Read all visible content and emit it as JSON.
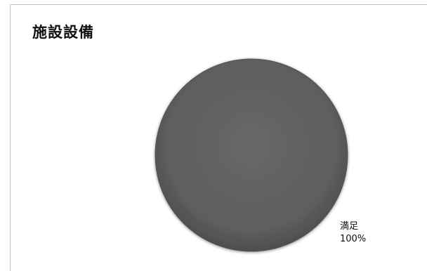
{
  "chart_data": {
    "type": "pie",
    "title": "施設設備",
    "slices": [
      {
        "label": "満足",
        "value": 100,
        "value_label": "100%",
        "color": "#5f5f5f"
      }
    ],
    "legend": "none"
  }
}
